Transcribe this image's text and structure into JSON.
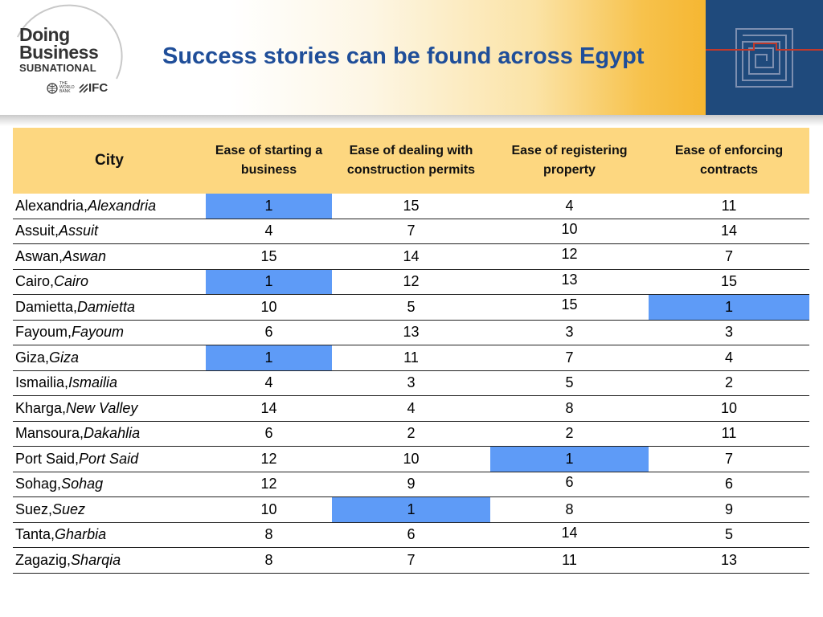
{
  "logo": {
    "line1": "Doing",
    "line2": "Business",
    "line3": "SUBNATIONAL",
    "world_bank_text": "THE WORLD BANK",
    "ifc_text": "IFC"
  },
  "title": "Success stories can be found across Egypt",
  "colors": {
    "header_accent": "#f5b631",
    "right_panel": "#1f4a7c",
    "table_header": "#fdd780",
    "highlight": "#5e9bf7",
    "title": "#1f4e99"
  },
  "table": {
    "headers": [
      "City",
      "Ease of starting a business",
      "Ease of dealing with construction permits",
      "Ease of registering property",
      "Ease of enforcing contracts"
    ],
    "rows": [
      {
        "city": "Alexandria, ",
        "governorate": "Alexandria",
        "v": [
          "1",
          "15",
          "4",
          "11"
        ]
      },
      {
        "city": "Assuit, ",
        "governorate": "Assuit",
        "v": [
          "4",
          "7",
          "10",
          "14"
        ]
      },
      {
        "city": "Aswan, ",
        "governorate": "Aswan",
        "v": [
          "15",
          "14",
          "12",
          "7"
        ]
      },
      {
        "city": "Cairo, ",
        "governorate": "Cairo",
        "v": [
          "1",
          "12",
          "13",
          "15"
        ]
      },
      {
        "city": "Damietta, ",
        "governorate": "Damietta",
        "v": [
          "10",
          "5",
          "15",
          "1"
        ]
      },
      {
        "city": "Fayoum, ",
        "governorate": "Fayoum",
        "v": [
          "6",
          "13",
          "3",
          "3"
        ]
      },
      {
        "city": "Giza, ",
        "governorate": "Giza",
        "v": [
          "1",
          "11",
          "7",
          "4"
        ]
      },
      {
        "city": "Ismailia, ",
        "governorate": "Ismailia",
        "v": [
          "4",
          "3",
          "5",
          "2"
        ]
      },
      {
        "city": "Kharga, ",
        "governorate": "New Valley",
        "v": [
          "14",
          "4",
          "8",
          "10"
        ]
      },
      {
        "city": "Mansoura, ",
        "governorate": "Dakahlia",
        "v": [
          "6",
          "2",
          "2",
          "11"
        ]
      },
      {
        "city": "Port Said, ",
        "governorate": "Port Said",
        "v": [
          "12",
          "10",
          "1",
          "7"
        ]
      },
      {
        "city": "Sohag, ",
        "governorate": "Sohag",
        "v": [
          "12",
          "9",
          "6",
          "6"
        ]
      },
      {
        "city": "Suez, ",
        "governorate": "Suez",
        "v": [
          "10",
          "1",
          "8",
          "9"
        ]
      },
      {
        "city": "Tanta, ",
        "governorate": "Gharbia",
        "v": [
          "8",
          "6",
          "14",
          "5"
        ]
      },
      {
        "city": "Zagazig, ",
        "governorate": "Sharqia",
        "v": [
          "8",
          "7",
          "11",
          "13"
        ]
      }
    ]
  }
}
